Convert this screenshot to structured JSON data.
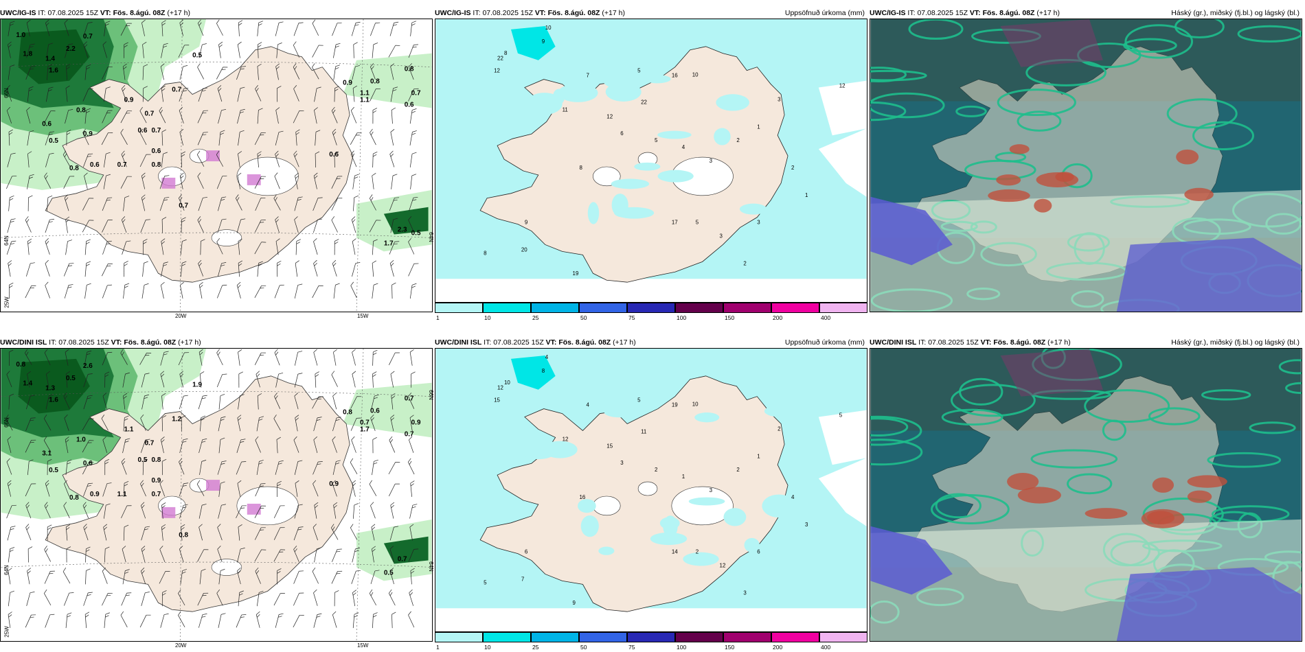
{
  "panels": [
    {
      "model": "UWC/IG-IS",
      "it_label": "IT:",
      "it": "07.08.2025 15Z",
      "vt_label": "VT:",
      "vt": "Fös. 8.ágú. 08Z",
      "lead": "(+17 h)",
      "right_title": "",
      "type": "wind",
      "values": [
        "1.0",
        "1.8",
        "1.4",
        "2.2",
        "1.6",
        "0.7",
        "0.5",
        "0.7",
        "0.8",
        "0.8",
        "0.9",
        "1.1",
        "0.7",
        "0.6",
        "0.6",
        "0.5",
        "0.9",
        "0.7",
        "0.6",
        "0.8",
        "0.8",
        "0.6",
        "0.7",
        "0.6",
        "0.7",
        "0.9",
        "0.8",
        "0.6",
        "0.7",
        "2.3",
        "1.7",
        "1.1",
        "0.5"
      ],
      "axis": {
        "left_top": "66N",
        "left_mid": "64N",
        "left_bot": "25W",
        "bottom_a": "20W",
        "bottom_b": "15W",
        "right_mid": "64N"
      }
    },
    {
      "model": "UWC/IG-IS",
      "it_label": "IT:",
      "it": "07.08.2025 15Z",
      "vt_label": "VT:",
      "vt": "Fös. 8.ágú. 08Z",
      "lead": "(+17 h)",
      "right_title": "Uppsöfnuð úrkoma (mm)",
      "type": "precip",
      "values": [
        "10",
        "8",
        "9",
        "12",
        "22",
        "5",
        "16",
        "10",
        "22",
        "11",
        "12",
        "8",
        "17",
        "19",
        "20",
        "9",
        "8",
        "7",
        "6",
        "5",
        "4",
        "3",
        "2",
        "1",
        "3",
        "2",
        "1",
        "3",
        "12",
        "3",
        "5",
        "2"
      ],
      "legend": [
        "1",
        "10",
        "25",
        "50",
        "75",
        "100",
        "150",
        "200",
        "400"
      ]
    },
    {
      "model": "UWC/IG-IS",
      "it_label": "IT:",
      "it": "07.08.2025 15Z",
      "vt_label": "VT:",
      "vt": "Fös. 8.ágú. 08Z",
      "lead": "(+17 h)",
      "right_title": "Háský (gr.), miðský (fj.bl.) og lágský (bl.)",
      "type": "cloud"
    },
    {
      "model": "UWC/DINI ISL",
      "it_label": "IT:",
      "it": "07.08.2025 15Z",
      "vt_label": "VT:",
      "vt": "Fös. 8.ágú. 08Z",
      "lead": "(+17 h)",
      "right_title": "",
      "type": "wind",
      "values": [
        "0.8",
        "1.4",
        "1.3",
        "0.5",
        "1.6",
        "2.6",
        "1.9",
        "1.2",
        "0.7",
        "0.6",
        "0.8",
        "0.7",
        "0.9",
        "0.7",
        "0.5",
        "0.5",
        "0.6",
        "0.8",
        "0.9",
        "0.7",
        "0.8",
        "0.9",
        "0.8",
        "0.9",
        "0.7",
        "1.1",
        "1.0",
        "3.1",
        "1.1",
        "0.7",
        "0.5",
        "1.7"
      ],
      "axis": {
        "left_top": "66N",
        "left_mid": "64N",
        "left_bot": "25W",
        "bottom_a": "20W",
        "bottom_b": "15W",
        "right_mid": "64N",
        "right_top": "66N"
      }
    },
    {
      "model": "UWC/DINI ISL",
      "it_label": "IT:",
      "it": "07.08.2025 15Z",
      "vt_label": "VT:",
      "vt": "Fös. 8.ágú. 08Z",
      "lead": "(+17 h)",
      "right_title": "Uppsöfnuð úrkoma (mm)",
      "type": "precip",
      "values": [
        "4",
        "10",
        "8",
        "15",
        "12",
        "5",
        "19",
        "10",
        "11",
        "12",
        "15",
        "16",
        "14",
        "9",
        "7",
        "6",
        "5",
        "4",
        "3",
        "2",
        "1",
        "3",
        "2",
        "1",
        "2",
        "4",
        "3",
        "6",
        "5",
        "12",
        "2",
        "3"
      ],
      "legend": [
        "1",
        "10",
        "25",
        "50",
        "75",
        "100",
        "150",
        "200",
        "400"
      ]
    },
    {
      "model": "UWC/DINI ISL",
      "it_label": "IT:",
      "it": "07.08.2025 15Z",
      "vt_label": "VT:",
      "vt": "Fös. 8.ágú. 08Z",
      "lead": "(+17 h)",
      "right_title": "Háský (gr.), miðský (fj.bl.) og lágský (bl.)",
      "type": "cloud"
    }
  ],
  "legend_colors": [
    "#b4f5f5",
    "#00e6e6",
    "#00b4e6",
    "#3264e6",
    "#2828b4",
    "#64004b",
    "#a0006e",
    "#f000a0",
    "#f0b4f0"
  ],
  "colors": {
    "land": "#f5e8dc",
    "sea_precip": "#b4f5f5",
    "wind_green_light": "#c8f0c8",
    "wind_green_dark": "#0a5a1e",
    "cloud_base": "#2d5a5a",
    "cloud_teal": "#1ebe8c",
    "cloud_blue": "#5a5ad2"
  }
}
